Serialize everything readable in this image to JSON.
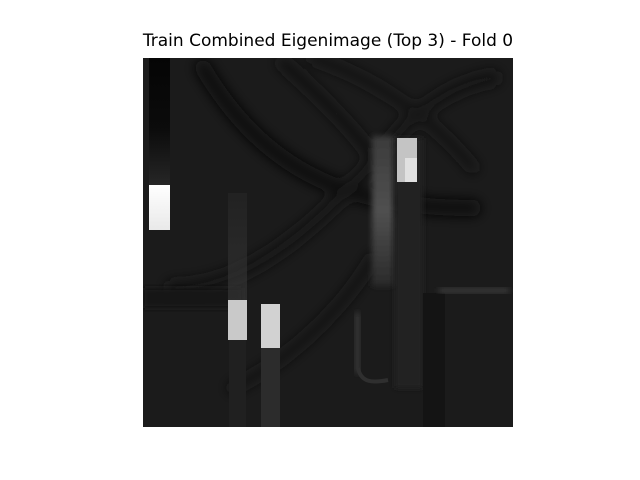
{
  "title": "Train Combined Eigenimage (Top 3) - Fold 0",
  "chart_data": {
    "type": "heatmap",
    "title": "Train Combined Eigenimage (Top 3) - Fold 0",
    "xlabel": "",
    "ylabel": "",
    "axes_visible": false,
    "colormap": "gray",
    "background_color": "#1b1b1b"
  }
}
